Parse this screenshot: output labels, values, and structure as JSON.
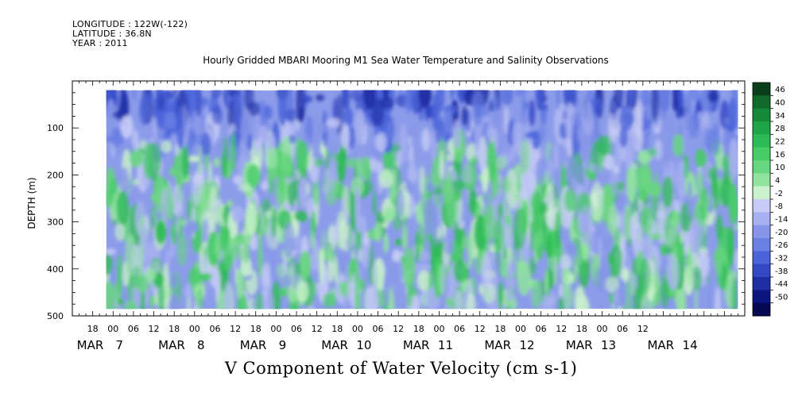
{
  "header": {
    "longitude": "LONGITUDE : 122W(-122)",
    "latitude": "LATITUDE : 36.8N",
    "year": "YEAR : 2011"
  },
  "chart_title": "Hourly Gridded MBARI Mooring M1 Sea Water Temperature and Salinity Observations",
  "variable_title": "V Component of Water Velocity (cm s-1)",
  "chart_data": {
    "type": "heatmap",
    "title": "Hourly Gridded MBARI Mooring M1 Sea Water Temperature and Salinity Observations",
    "xlabel": "",
    "ylabel": "DEPTH (m)",
    "ylim": [
      500,
      0
    ],
    "y_ticks": [
      100,
      200,
      300,
      400,
      500
    ],
    "y_tick_labels": [
      "100",
      "200",
      "300",
      "400",
      "500"
    ],
    "x_hour_ticks": [
      "18",
      "00",
      "06",
      "12",
      "18",
      "00",
      "06",
      "12",
      "18",
      "00",
      "06",
      "12",
      "18",
      "00",
      "06",
      "12",
      "18",
      "00",
      "06",
      "12",
      "18",
      "00",
      "06",
      "12",
      "18",
      "00",
      "06",
      "12"
    ],
    "x_date_ticks": [
      "MAR 7",
      "MAR 8",
      "MAR 9",
      "MAR 10",
      "MAR 11",
      "MAR 12",
      "MAR 13",
      "MAR 14"
    ],
    "x_date_labels": [
      {
        "month": "MAR",
        "day": "7"
      },
      {
        "month": "MAR",
        "day": "8"
      },
      {
        "month": "MAR",
        "day": "9"
      },
      {
        "month": "MAR",
        "day": "10"
      },
      {
        "month": "MAR",
        "day": "11"
      },
      {
        "month": "MAR",
        "day": "12"
      },
      {
        "month": "MAR",
        "day": "13"
      },
      {
        "month": "MAR",
        "day": "14"
      }
    ],
    "x_range": [
      "2011-03-06T12:00",
      "2011-03-14T18:00"
    ],
    "data_range": [
      "2011-03-06T22:00",
      "2011-03-14T16:00"
    ],
    "depth_range_data": [
      20,
      485
    ],
    "colorbar_levels": [
      46,
      40,
      34,
      28,
      22,
      16,
      10,
      4,
      -2,
      -8,
      -14,
      -20,
      -26,
      -32,
      -38,
      -44,
      -50
    ],
    "colorbar_labels": [
      "46",
      "40",
      "34",
      "28",
      "22",
      "16",
      "10",
      "4",
      "-2",
      "-8",
      "-14",
      "-20",
      "-26",
      "-32",
      "-38",
      "-44",
      "-50"
    ],
    "colorbar_colors": [
      "#0b3f1c",
      "#106a2c",
      "#16883a",
      "#1ea548",
      "#2dbb56",
      "#46cc66",
      "#68d67f",
      "#92e3a0",
      "#c9f1cb",
      "#c6ccf5",
      "#a7b1ef",
      "#8796e8",
      "#6a80e3",
      "#4b64da",
      "#3448c6",
      "#1f2ea4",
      "#0c1680",
      "#050a52"
    ],
    "grid": false
  }
}
